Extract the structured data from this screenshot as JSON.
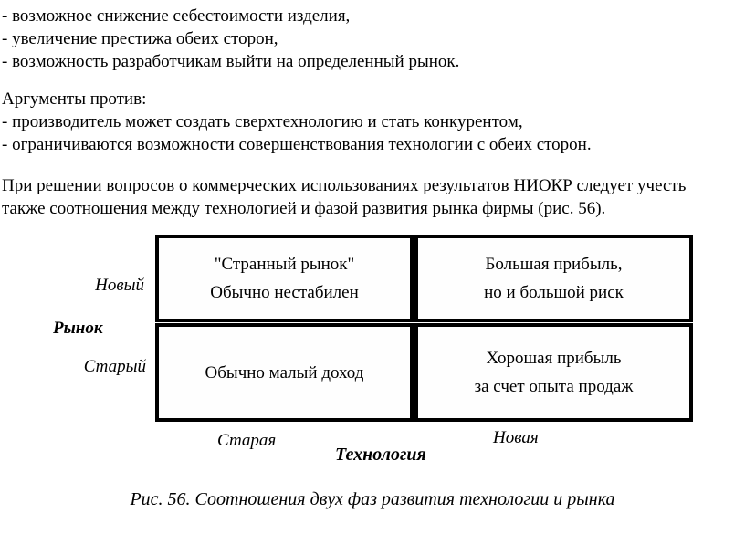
{
  "text": {
    "pros_lines": [
      "- возможное снижение себестоимости изделия,",
      "- увеличение престижа обеих сторон,",
      "- возможность разработчикам выйти на определенный рынок."
    ],
    "against_header": "Аргументы против:",
    "against_lines": [
      "- производитель может создать сверхтехнологию и стать конкурентом,",
      "- ограничиваются возможности совершенствования технологии с обеих сторон."
    ],
    "paragraph_lines": [
      "При решении вопросов о коммерческих использованиях результатов НИОКР следует учесть",
      "также соотношения между технологией и фазой развития рынка фирмы (рис. 56)."
    ]
  },
  "figure": {
    "matrix": {
      "top_left": {
        "line1": "\"Странный рынок\"",
        "line2": "Обычно нестабилен"
      },
      "top_right": {
        "line1": "Большая прибыль,",
        "line2": "но и большой риск"
      },
      "bottom_left": {
        "line1": "Обычно малый доход"
      },
      "bottom_right": {
        "line1": "Хорошая прибыль",
        "line2": "за счет опыта продаж"
      }
    },
    "row_axis_label": "Рынок",
    "row_values": [
      "Новый",
      "Старый"
    ],
    "col_axis_label": "Технология",
    "col_values": [
      "Старая",
      "Новая"
    ],
    "caption": "Рис. 56. Соотношения двух фаз развития технологии и рынка",
    "border_color": "#000000"
  }
}
